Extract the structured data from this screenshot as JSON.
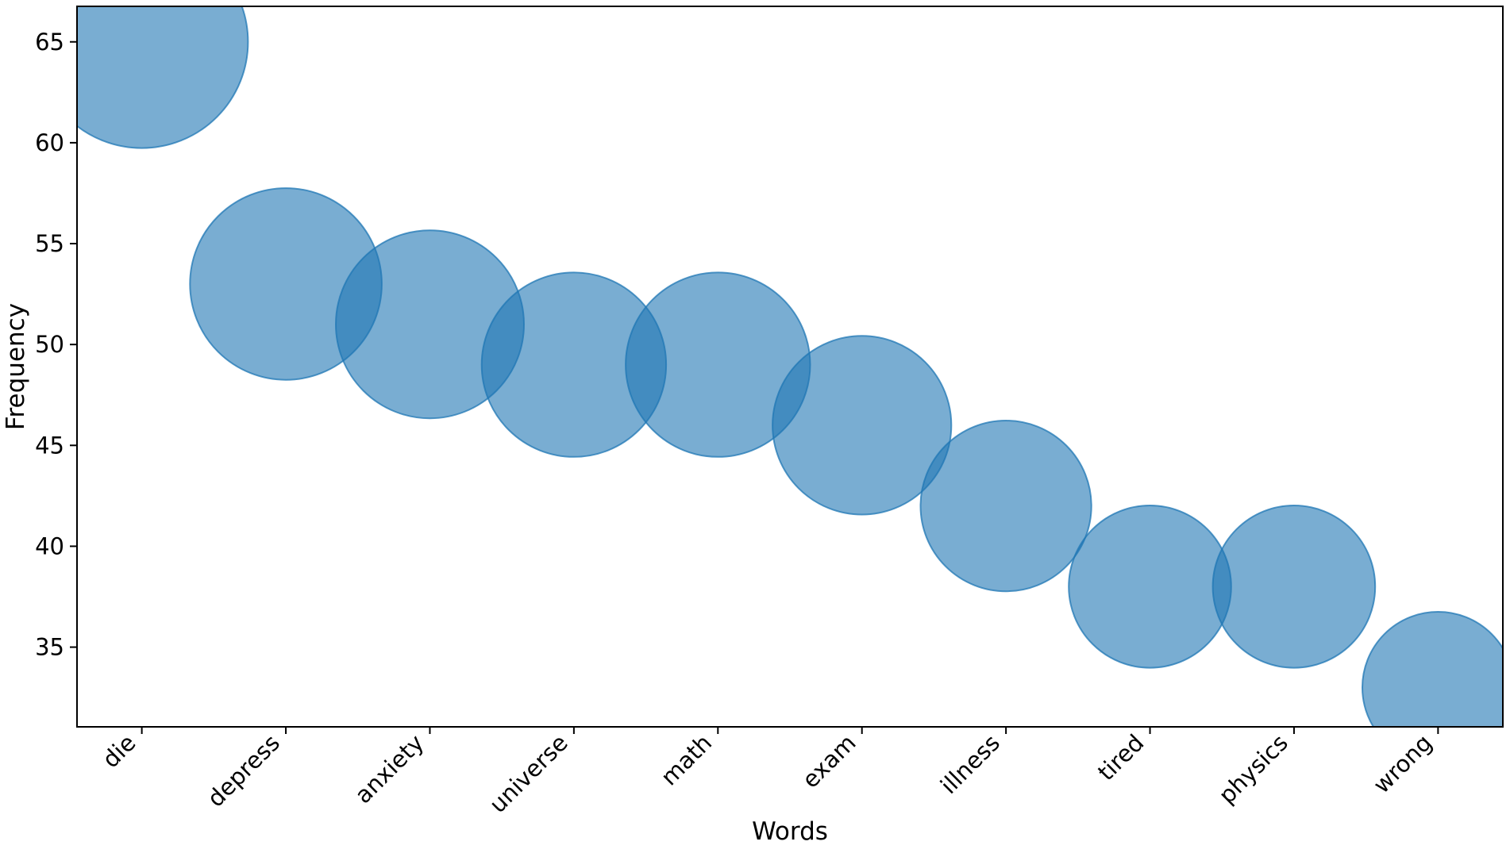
{
  "chart_data": {
    "type": "scatter",
    "subtype": "bubble",
    "title": "",
    "xlabel": "Words",
    "ylabel": "Frequency",
    "categories": [
      "die",
      "depress",
      "anxiety",
      "universe",
      "math",
      "exam",
      "illness",
      "tired",
      "physics",
      "wrong"
    ],
    "values": [
      65,
      53,
      51,
      49,
      49,
      46,
      42,
      38,
      38,
      33
    ],
    "series": [
      {
        "name": "Frequency",
        "values": [
          65,
          53,
          51,
          49,
          49,
          46,
          42,
          38,
          38,
          33
        ]
      }
    ],
    "bubble_size_rule": "area proportional to frequency",
    "marker_radius_px_per_sqrt_unit": 16.6,
    "yticks": [
      35,
      40,
      45,
      50,
      55,
      60,
      65
    ],
    "ylim": [
      31.05,
      66.76
    ],
    "xlim_category_units": [
      -0.45,
      9.45
    ],
    "grid": false,
    "legend": null,
    "xtick_label_rotation_deg": 45,
    "colors": {
      "background": "#ffffff",
      "bubble_fill": "#1f77b4",
      "bubble_fill_opacity": 0.6,
      "bubble_stroke": "#1f77b4",
      "bubble_stroke_opacity": 0.75,
      "axis_line": "#000000",
      "text": "#000000"
    }
  }
}
